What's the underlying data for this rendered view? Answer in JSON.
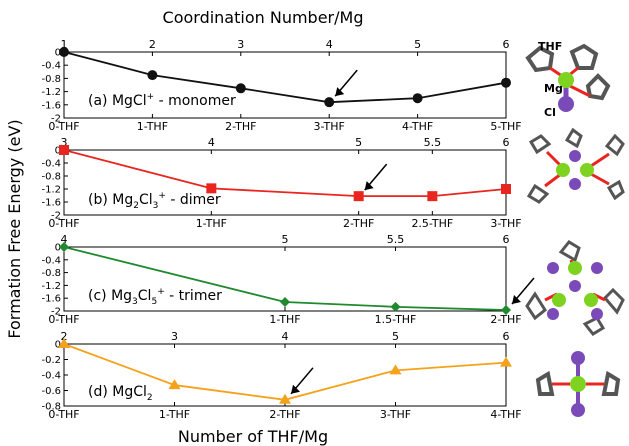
{
  "top_title": "Coordination Number/Mg",
  "bottom_title": "Number of THF/Mg",
  "ylabel": "Formation Free Energy (eV)",
  "chart_data": [
    {
      "type": "line",
      "label_parts": [
        "(a) MgCl",
        "+",
        " - monomer"
      ],
      "color": "#111111",
      "marker": "circle",
      "ylim": [
        -2,
        0
      ],
      "yticks": [
        "0",
        "-0.4",
        "-0.8",
        "-1.2",
        "-1.6",
        "-2"
      ],
      "ytick_values": [
        0,
        -0.4,
        -0.8,
        -1.2,
        -1.6,
        -2.0
      ],
      "x": [
        0,
        1,
        2,
        3,
        4,
        5
      ],
      "y": [
        0,
        -0.7,
        -1.1,
        -1.52,
        -1.4,
        -0.93
      ],
      "top_ticks": [
        {
          "x": 0,
          "label": "1"
        },
        {
          "x": 1,
          "label": "2"
        },
        {
          "x": 2,
          "label": "3"
        },
        {
          "x": 3,
          "label": "4"
        },
        {
          "x": 4,
          "label": "5"
        },
        {
          "x": 5,
          "label": "6"
        }
      ],
      "bottom_ticks": [
        {
          "x": 0,
          "label": "0-THF"
        },
        {
          "x": 1,
          "label": "1-THF"
        },
        {
          "x": 2,
          "label": "2-THF"
        },
        {
          "x": 3,
          "label": "3-THF"
        },
        {
          "x": 4,
          "label": "4-THF"
        },
        {
          "x": 5,
          "label": "5-THF"
        }
      ],
      "arrow_x": 3
    },
    {
      "type": "line",
      "label_parts": [
        "(b) Mg",
        "2",
        "Cl",
        "3",
        "+",
        " - dimer"
      ],
      "color": "#e8261f",
      "marker": "square",
      "ylim": [
        -2,
        0
      ],
      "yticks": [
        "0",
        "-0.4",
        "-0.8",
        "-1.2",
        "-1.6",
        "-2"
      ],
      "ytick_values": [
        0,
        -0.4,
        -0.8,
        -1.2,
        -1.6,
        -2.0
      ],
      "x": [
        0,
        1,
        2,
        2.5,
        3
      ],
      "y": [
        0,
        -1.18,
        -1.42,
        -1.42,
        -1.2
      ],
      "top_ticks": [
        {
          "x": 0,
          "label": "3"
        },
        {
          "x": 1,
          "label": "4"
        },
        {
          "x": 2,
          "label": "5"
        },
        {
          "x": 2.5,
          "label": "5.5"
        },
        {
          "x": 3,
          "label": "6"
        }
      ],
      "bottom_ticks": [
        {
          "x": 0,
          "label": "0-THF"
        },
        {
          "x": 1,
          "label": "1-THF"
        },
        {
          "x": 2,
          "label": "2-THF"
        },
        {
          "x": 2.5,
          "label": "2.5-THF"
        },
        {
          "x": 3,
          "label": "3-THF"
        }
      ],
      "arrow_x": 2
    },
    {
      "type": "line",
      "label_parts": [
        "(c) Mg",
        "3",
        "Cl",
        "5",
        "+",
        " - trimer"
      ],
      "color": "#1f8a2e",
      "marker": "diamond",
      "ylim": [
        -2,
        0
      ],
      "yticks": [
        "0",
        "-0.4",
        "-0.8",
        "-1.2",
        "-1.6",
        "-2"
      ],
      "ytick_values": [
        0,
        -0.4,
        -0.8,
        -1.2,
        -1.6,
        -2.0
      ],
      "x": [
        0,
        1,
        1.5,
        2
      ],
      "y": [
        0,
        -1.72,
        -1.87,
        -1.97
      ],
      "top_ticks": [
        {
          "x": 0,
          "label": "4"
        },
        {
          "x": 1,
          "label": "5"
        },
        {
          "x": 1.5,
          "label": "5.5"
        },
        {
          "x": 2,
          "label": "6"
        }
      ],
      "bottom_ticks": [
        {
          "x": 0,
          "label": "0-THF"
        },
        {
          "x": 1,
          "label": "1-THF"
        },
        {
          "x": 1.5,
          "label": "1.5-THF"
        },
        {
          "x": 2,
          "label": "2-THF"
        }
      ],
      "arrow_x": 2
    },
    {
      "type": "line",
      "label_parts": [
        "(d) MgCl",
        "2",
        ""
      ],
      "color": "#f5a21b",
      "marker": "triangle",
      "ylim": [
        -0.8,
        0
      ],
      "yticks": [
        "0",
        "-0.2",
        "-0.4",
        "-0.6",
        "-0.8"
      ],
      "ytick_values": [
        0,
        -0.2,
        -0.4,
        -0.6,
        -0.8
      ],
      "x": [
        0,
        1,
        2,
        3,
        4
      ],
      "y": [
        0,
        -0.53,
        -0.72,
        -0.34,
        -0.24
      ],
      "top_ticks": [
        {
          "x": 0,
          "label": "2"
        },
        {
          "x": 1,
          "label": "3"
        },
        {
          "x": 2,
          "label": "4"
        },
        {
          "x": 3,
          "label": "5"
        },
        {
          "x": 4,
          "label": "6"
        }
      ],
      "bottom_ticks": [
        {
          "x": 0,
          "label": "0-THF"
        },
        {
          "x": 1,
          "label": "1-THF"
        },
        {
          "x": 2,
          "label": "2-THF"
        },
        {
          "x": 3,
          "label": "3-THF"
        },
        {
          "x": 4,
          "label": "4-THF"
        }
      ],
      "arrow_x": 2
    }
  ],
  "molecule_labels": {
    "thf": "THF",
    "mg": "Mg",
    "cl": "Cl"
  }
}
